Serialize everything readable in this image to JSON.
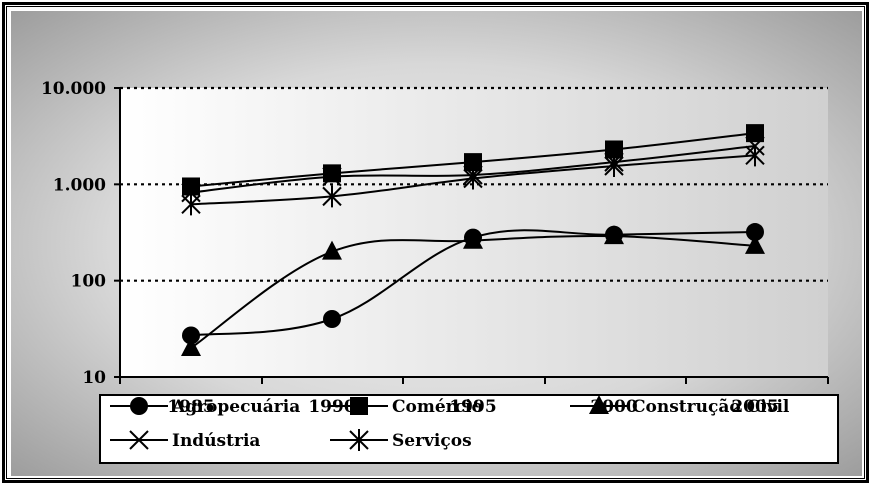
{
  "chart_data": {
    "type": "line",
    "title": "",
    "xlabel": "",
    "ylabel": "",
    "y_scale": "log",
    "ylim": [
      10,
      10000
    ],
    "y_ticks": [
      {
        "value": 10,
        "label": "10"
      },
      {
        "value": 100,
        "label": "100"
      },
      {
        "value": 1000,
        "label": "1.000"
      },
      {
        "value": 10000,
        "label": "10.000"
      }
    ],
    "categories": [
      "1985",
      "1990",
      "1995",
      "2000",
      "2005"
    ],
    "gridlines": "dotted horizontal",
    "legend_position": "bottom",
    "series": [
      {
        "name": "Agropecuária",
        "marker": "circle",
        "values": [
          27,
          40,
          280,
          300,
          320
        ]
      },
      {
        "name": "Comércio",
        "marker": "square",
        "values": [
          950,
          1300,
          1700,
          2300,
          3400
        ]
      },
      {
        "name": "Construção Civil",
        "marker": "triangle",
        "values": [
          20,
          200,
          260,
          290,
          230
        ]
      },
      {
        "name": "Indústria",
        "marker": "x",
        "values": [
          820,
          1200,
          1250,
          1700,
          2500
        ]
      },
      {
        "name": "Serviços",
        "marker": "star",
        "values": [
          620,
          750,
          1150,
          1550,
          2000
        ]
      }
    ]
  }
}
